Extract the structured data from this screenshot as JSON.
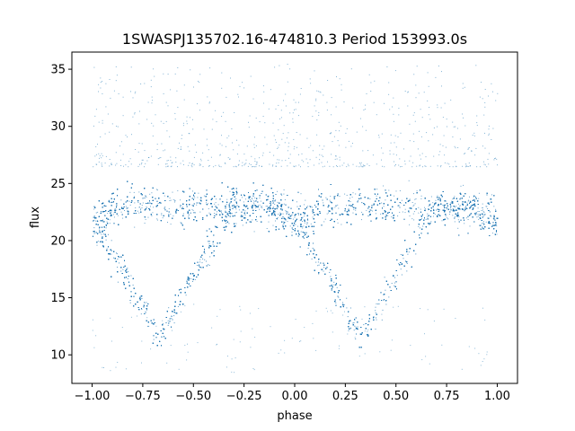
{
  "chart_data": {
    "type": "scatter",
    "title": "1SWASPJ135702.16-474810.3 Period 153993.0s",
    "xlabel": "phase",
    "ylabel": "flux",
    "xlim": [
      -1.1,
      1.1
    ],
    "ylim": [
      7.5,
      36.5
    ],
    "xticks": [
      -1.0,
      -0.75,
      -0.5,
      -0.25,
      0.0,
      0.25,
      0.5,
      0.75,
      1.0
    ],
    "xtick_labels": [
      "−1.00",
      "−0.75",
      "−0.50",
      "−0.25",
      "0.00",
      "0.25",
      "0.50",
      "0.75",
      "1.00"
    ],
    "yticks": [
      10,
      15,
      20,
      25,
      30,
      35
    ],
    "ytick_labels": [
      "10",
      "15",
      "20",
      "25",
      "30",
      "35"
    ],
    "grid": false,
    "series": [
      {
        "color": "#1f77b4",
        "marker": "point",
        "description_points": {
          "phase_range": [
            -1.0,
            1.0
          ],
          "baseline_flux_median": 23.0,
          "baseline_flux_spread": [
            20.0,
            27.0
          ],
          "eclipse_centers": [
            -0.67,
            0.33
          ],
          "eclipse_min_flux": 11.5,
          "outlier_flux_range": [
            8.5,
            35.5
          ]
        },
        "points": [
          [
            -1.0,
            22.5
          ],
          [
            -0.9,
            23.1
          ],
          [
            -0.8,
            22.8
          ],
          [
            -0.7,
            12.6
          ],
          [
            -0.67,
            12.0
          ],
          [
            -0.64,
            12.8
          ],
          [
            -0.6,
            15.5
          ],
          [
            -0.5,
            21.5
          ],
          [
            -0.4,
            23.0
          ],
          [
            -0.3,
            23.2
          ],
          [
            -0.2,
            22.9
          ],
          [
            -0.1,
            22.6
          ],
          [
            0.0,
            21.0
          ],
          [
            0.1,
            19.0
          ],
          [
            0.2,
            16.5
          ],
          [
            0.3,
            12.5
          ],
          [
            0.33,
            11.8
          ],
          [
            0.36,
            12.6
          ],
          [
            0.4,
            15.0
          ],
          [
            0.5,
            21.0
          ],
          [
            0.6,
            23.0
          ],
          [
            0.7,
            23.1
          ],
          [
            0.8,
            23.0
          ],
          [
            0.9,
            22.8
          ],
          [
            1.0,
            22.4
          ]
        ]
      }
    ]
  }
}
